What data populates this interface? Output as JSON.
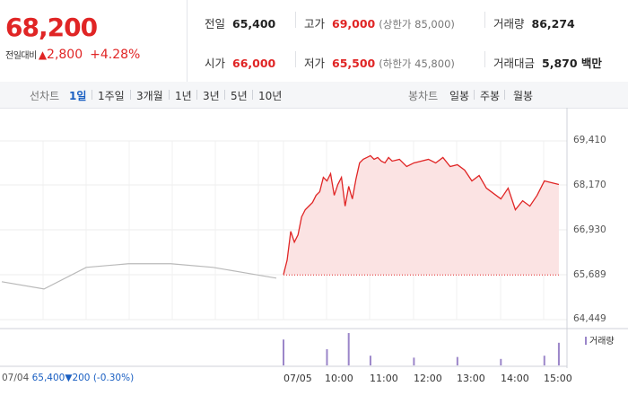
{
  "quote": {
    "price": "68,200",
    "change_label": "전일대비",
    "change_arrow": "▲",
    "change_amount": "2,800",
    "change_percent": "+4.28%"
  },
  "stats": {
    "prev_label": "전일",
    "prev_value": "65,400",
    "high_label": "고가",
    "high_value": "69,000",
    "high_sub": "(상한가 85,000)",
    "volume_label": "거래량",
    "volume_value": "86,274",
    "open_label": "시가",
    "open_value": "66,000",
    "low_label": "저가",
    "low_value": "65,500",
    "low_sub": "(하한가 45,800)",
    "amount_label": "거래대금",
    "amount_value": "5,870 백만"
  },
  "toolbar": {
    "line_label": "선차트",
    "periods": [
      "1일",
      "1주일",
      "3개월",
      "1년",
      "3년",
      "5년",
      "10년"
    ],
    "candle_label": "봉차트",
    "candles": [
      "일봉",
      "주봉",
      "월봉"
    ]
  },
  "footer": {
    "prev_date": "07/04",
    "prev_close": "65,400",
    "prev_change_arrow": "▼",
    "prev_change": "200",
    "prev_change_pct": "(-0.30%)"
  },
  "volume_legend": "거래량",
  "colors": {
    "up": "#e02525",
    "down": "#1a5fc2",
    "area": "#fbe3e3",
    "prev_line": "#b9b9b9",
    "volume": "#9b86c9"
  },
  "chart_data": {
    "type": "area",
    "y_ticks": [
      "69,410",
      "68,170",
      "66,930",
      "65,689",
      "64,449"
    ],
    "ylim": [
      64449,
      69410
    ],
    "x_ticks": [
      "07/05",
      "10:00",
      "11:00",
      "12:00",
      "13:00",
      "14:00",
      "15:00"
    ],
    "baseline": 65689,
    "series": [
      {
        "x": [
          "09:00",
          "09:05",
          "09:10",
          "09:15",
          "09:20",
          "09:25",
          "09:30",
          "09:35",
          "09:40",
          "09:45",
          "09:50",
          "09:55",
          "10:00",
          "10:05",
          "10:10",
          "10:15",
          "10:20",
          "10:25",
          "10:30",
          "10:35",
          "10:40",
          "10:45",
          "10:50",
          "10:55",
          "11:00",
          "11:05",
          "11:10",
          "11:15",
          "11:20",
          "11:25",
          "11:30",
          "11:40",
          "11:50",
          "12:00",
          "12:10",
          "12:20",
          "12:30",
          "12:40",
          "12:50",
          "13:00",
          "13:10",
          "13:20",
          "13:30",
          "13:40",
          "13:50",
          "14:00",
          "14:10",
          "14:20",
          "14:30",
          "14:40",
          "14:50",
          "15:00",
          "15:10",
          "15:20"
        ],
        "values": [
          65700,
          66100,
          66900,
          66600,
          66800,
          67300,
          67500,
          67600,
          67700,
          67900,
          68000,
          68400,
          68300,
          68500,
          67900,
          68200,
          68400,
          67600,
          68150,
          67800,
          68350,
          68800,
          68900,
          68950,
          69000,
          68900,
          68950,
          68850,
          68800,
          68950,
          68850,
          68900,
          68700,
          68800,
          68850,
          68900,
          68800,
          68950,
          68700,
          68750,
          68600,
          68300,
          68450,
          68100,
          67950,
          67800,
          68100,
          67500,
          67750,
          67600,
          67900,
          68300,
          68250,
          68200
        ]
      }
    ],
    "prev_day_series": {
      "x": [
        "07/04 09:00",
        "10:00",
        "11:00",
        "12:00",
        "13:00",
        "14:00",
        "15:00",
        "15:30"
      ],
      "values": [
        65500,
        65300,
        65900,
        66000,
        66000,
        65900,
        65700,
        65600
      ]
    },
    "volume": {
      "x": [
        "09:00",
        "10:00",
        "10:30",
        "11:00",
        "12:00",
        "13:00",
        "14:00",
        "15:00",
        "15:20"
      ],
      "values": [
        4000,
        2500,
        5000,
        1500,
        1200,
        1300,
        1000,
        1500,
        3500
      ]
    }
  }
}
